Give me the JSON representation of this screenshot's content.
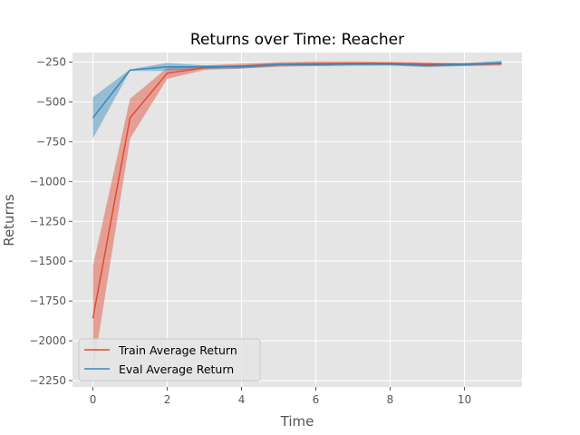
{
  "chart_data": {
    "type": "line",
    "title": "Returns over Time: Reacher",
    "xlabel": "Time",
    "ylabel": "Returns",
    "xlim": [
      -0.55,
      11.55
    ],
    "ylim": [
      -2290,
      -190
    ],
    "xticks": [
      0,
      2,
      4,
      6,
      8,
      10
    ],
    "yticks": [
      -2250,
      -2000,
      -1750,
      -1500,
      -1250,
      -1000,
      -750,
      -500,
      -250
    ],
    "grid": true,
    "legend_position": "bottom-left",
    "x": [
      0,
      1,
      2,
      3,
      4,
      5,
      6,
      7,
      8,
      9,
      10,
      11
    ],
    "series": [
      {
        "name": "Train Average Return",
        "color": "#E24A33",
        "values": [
          -1860,
          -600,
          -320,
          -285,
          -275,
          -265,
          -260,
          -258,
          -258,
          -262,
          -265,
          -260
        ],
        "upper": [
          -1530,
          -480,
          -285,
          -270,
          -260,
          -250,
          -245,
          -245,
          -248,
          -250,
          -255,
          -248
        ],
        "lower": [
          -2200,
          -730,
          -355,
          -300,
          -290,
          -280,
          -275,
          -272,
          -270,
          -275,
          -275,
          -272
        ]
      },
      {
        "name": "Eval Average Return",
        "color": "#348ABD",
        "values": [
          -600,
          -300,
          -280,
          -280,
          -280,
          -265,
          -265,
          -262,
          -262,
          -272,
          -265,
          -255
        ],
        "upper": [
          -470,
          -295,
          -255,
          -270,
          -270,
          -255,
          -255,
          -252,
          -252,
          -260,
          -255,
          -242
        ],
        "lower": [
          -730,
          -305,
          -305,
          -292,
          -290,
          -275,
          -275,
          -272,
          -272,
          -282,
          -275,
          -265
        ]
      }
    ]
  }
}
